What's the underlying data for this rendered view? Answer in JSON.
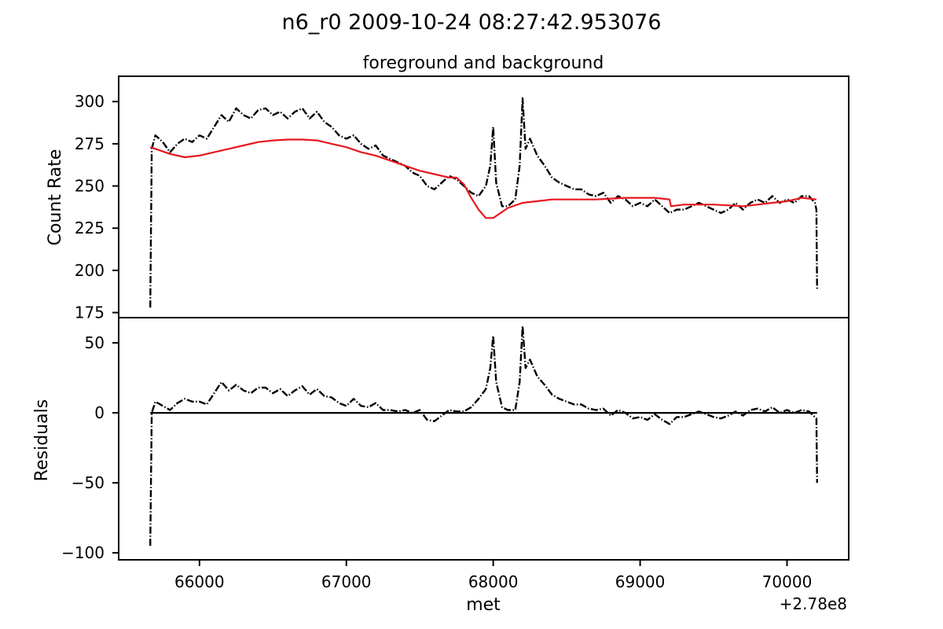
{
  "figure": {
    "suptitle": "n6_r0 2009-10-24 08:27:42.953076",
    "xlabel": "met",
    "x_offset_label": "+2.78e8"
  },
  "chart_data": [
    {
      "type": "line",
      "title": "foreground and background",
      "xlabel": "",
      "ylabel": "Count Rate",
      "xlim": [
        65450,
        70420
      ],
      "ylim": [
        172,
        315
      ],
      "x_ticks": [
        66000,
        67000,
        68000,
        69000,
        70000
      ],
      "y_ticks": [
        175,
        200,
        225,
        250,
        275,
        300
      ],
      "grid": false,
      "series": [
        {
          "color": "#000000",
          "style": "dashdot",
          "x": [
            65665,
            65675,
            65700,
            65750,
            65800,
            65850,
            65900,
            65950,
            66000,
            66050,
            66100,
            66150,
            66200,
            66250,
            66300,
            66350,
            66400,
            66450,
            66500,
            66550,
            66600,
            66650,
            66700,
            66750,
            66800,
            66850,
            66900,
            66950,
            67000,
            67050,
            67100,
            67150,
            67200,
            67250,
            67300,
            67350,
            67400,
            67450,
            67500,
            67550,
            67600,
            67650,
            67700,
            67750,
            67800,
            67850,
            67900,
            67950,
            67980,
            68000,
            68020,
            68060,
            68100,
            68150,
            68180,
            68200,
            68220,
            68250,
            68300,
            68350,
            68400,
            68450,
            68500,
            68550,
            68600,
            68650,
            68700,
            68750,
            68800,
            68850,
            68900,
            68950,
            69000,
            69050,
            69100,
            69150,
            69200,
            69250,
            69300,
            69350,
            69400,
            69450,
            69500,
            69550,
            69600,
            69650,
            69700,
            69750,
            69800,
            69850,
            69900,
            69950,
            70000,
            70050,
            70100,
            70150,
            70190,
            70200,
            70205
          ],
          "y": [
            178,
            272,
            280,
            276,
            270,
            275,
            278,
            276,
            280,
            278,
            285,
            292,
            288,
            296,
            292,
            290,
            295,
            296,
            292,
            294,
            290,
            294,
            296,
            290,
            294,
            288,
            285,
            280,
            278,
            280,
            275,
            272,
            274,
            268,
            266,
            264,
            262,
            258,
            256,
            250,
            248,
            252,
            256,
            254,
            250,
            246,
            244,
            250,
            262,
            285,
            252,
            238,
            238,
            242,
            262,
            302,
            272,
            278,
            268,
            262,
            255,
            252,
            250,
            248,
            248,
            245,
            244,
            246,
            240,
            244,
            242,
            238,
            240,
            238,
            242,
            238,
            234,
            236,
            236,
            238,
            240,
            238,
            236,
            234,
            236,
            240,
            236,
            240,
            242,
            240,
            244,
            240,
            242,
            240,
            244,
            244,
            240,
            236,
            188
          ]
        },
        {
          "color": "#e6181f",
          "style": "solid",
          "x": [
            65665,
            65700,
            65800,
            65900,
            66000,
            66100,
            66200,
            66300,
            66400,
            66500,
            66600,
            66700,
            66800,
            66900,
            67000,
            67100,
            67200,
            67300,
            67400,
            67500,
            67600,
            67700,
            67750,
            67800,
            67850,
            67900,
            67950,
            68000,
            68050,
            68100,
            68200,
            68300,
            68400,
            68500,
            68600,
            68700,
            68800,
            68900,
            69000,
            69100,
            69200,
            69210,
            69300,
            69400,
            69500,
            69600,
            69700,
            69800,
            69900,
            70000,
            70100,
            70200
          ],
          "y": [
            273,
            272,
            269,
            267,
            268,
            270,
            272,
            274,
            276,
            277,
            277.5,
            277.5,
            277,
            275,
            273,
            270,
            268,
            265,
            262,
            259,
            257,
            255,
            255,
            251,
            243,
            236,
            231,
            231,
            234,
            237,
            240,
            241,
            242,
            242,
            242,
            242,
            242.5,
            243,
            243,
            243,
            242,
            238,
            239,
            239,
            239,
            238.5,
            238,
            239,
            240,
            241,
            243,
            242
          ]
        }
      ]
    },
    {
      "type": "line",
      "title": "",
      "xlabel": "met",
      "ylabel": "Residuals",
      "xlim": [
        65450,
        70420
      ],
      "ylim": [
        -105,
        68
      ],
      "x_ticks": [
        66000,
        67000,
        68000,
        69000,
        70000
      ],
      "y_ticks": [
        -100,
        -50,
        0,
        50
      ],
      "grid": false,
      "series": [
        {
          "color": "#000000",
          "style": "dashdot",
          "x": [
            65665,
            65675,
            65700,
            65750,
            65800,
            65850,
            65900,
            65950,
            66000,
            66050,
            66100,
            66150,
            66200,
            66250,
            66300,
            66350,
            66400,
            66450,
            66500,
            66550,
            66600,
            66650,
            66700,
            66750,
            66800,
            66850,
            66900,
            66950,
            67000,
            67050,
            67100,
            67150,
            67200,
            67250,
            67300,
            67350,
            67400,
            67450,
            67500,
            67550,
            67600,
            67650,
            67700,
            67750,
            67800,
            67850,
            67900,
            67950,
            67980,
            68000,
            68020,
            68060,
            68100,
            68150,
            68180,
            68200,
            68220,
            68250,
            68300,
            68350,
            68400,
            68450,
            68500,
            68550,
            68600,
            68650,
            68700,
            68750,
            68800,
            68850,
            68900,
            68950,
            69000,
            69050,
            69100,
            69150,
            69200,
            69250,
            69300,
            69350,
            69400,
            69450,
            69500,
            69550,
            69600,
            69650,
            69700,
            69750,
            69800,
            69850,
            69900,
            69950,
            70000,
            70050,
            70100,
            70150,
            70190,
            70200,
            70205
          ],
          "y": [
            -95,
            0,
            8,
            5,
            2,
            7,
            10,
            8,
            8,
            6,
            14,
            22,
            16,
            20,
            16,
            14,
            18,
            18,
            14,
            17,
            12,
            16,
            19,
            13,
            17,
            12,
            11,
            7,
            5,
            10,
            5,
            4,
            7,
            2,
            2,
            1,
            2,
            0,
            2,
            -5,
            -6,
            -2,
            2,
            1,
            1,
            4,
            10,
            17,
            32,
            55,
            22,
            4,
            2,
            2,
            22,
            62,
            32,
            38,
            26,
            20,
            13,
            10,
            8,
            6,
            6,
            3,
            2,
            3,
            -2,
            2,
            0,
            -4,
            -3,
            -5,
            -1,
            -5,
            -8,
            -3,
            -3,
            -1,
            1,
            -1,
            -3,
            -4,
            -2,
            1,
            -2,
            2,
            3,
            1,
            4,
            0,
            2,
            0,
            2,
            1,
            -3,
            -4,
            -50
          ]
        },
        {
          "color": "#000000",
          "style": "solid",
          "x": [
            65665,
            70205
          ],
          "y": [
            0,
            0
          ]
        }
      ]
    }
  ]
}
